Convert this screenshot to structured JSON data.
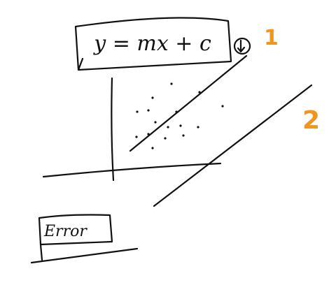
{
  "equation": "y = mx + c",
  "lines": [
    {
      "label": "1"
    },
    {
      "label": "2"
    }
  ],
  "box": {
    "label": "Error"
  }
}
